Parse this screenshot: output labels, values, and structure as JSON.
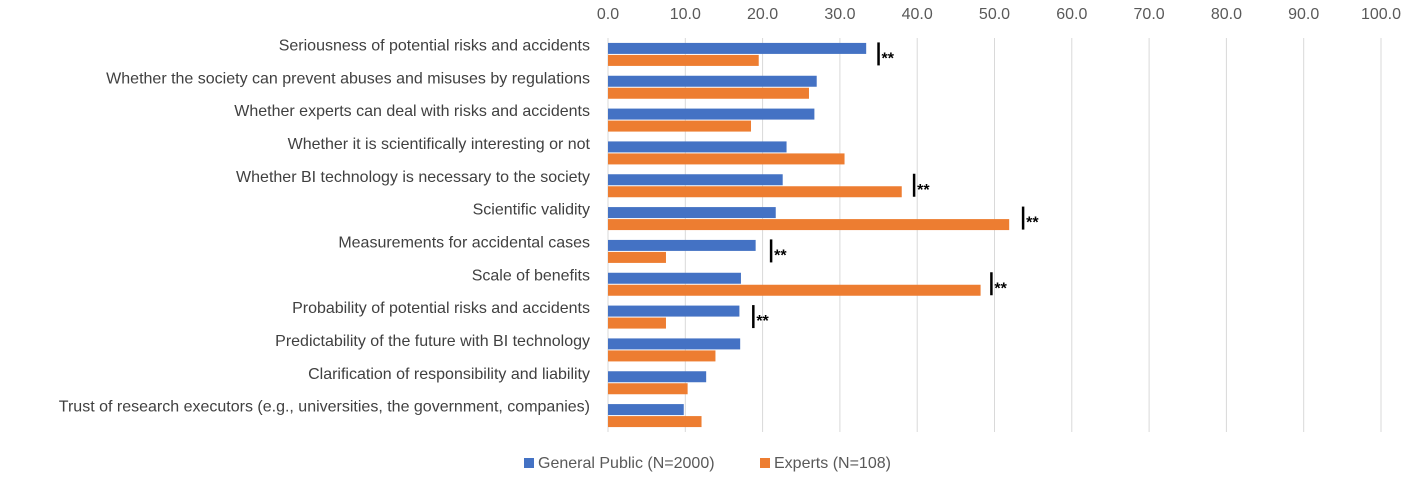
{
  "chart_data": {
    "type": "bar",
    "orientation": "horizontal",
    "title": "",
    "xlabel": "",
    "ylabel": "",
    "xlim": [
      0,
      100
    ],
    "x_ticks": [
      "0.0",
      "10.0",
      "20.0",
      "30.0",
      "40.0",
      "50.0",
      "60.0",
      "70.0",
      "80.0",
      "90.0",
      "100.0"
    ],
    "x_axis_position": "top",
    "grid": true,
    "legend_position": "bottom",
    "categories": [
      "Seriousness of potential risks and accidents",
      "Whether the society can prevent abuses and misuses by regulations",
      "Whether experts can deal with risks and accidents",
      "Whether it is scientifically interesting or not",
      "Whether BI technology is necessary to the society",
      "Scientific validity",
      "Measurements for accidental cases",
      "Scale of benefits",
      "Probability of potential risks and accidents",
      "Predictability of the future with BI technology",
      "Clarification of responsibility and liability",
      "Trust of research executors (e.g., universities, the government, companies)"
    ],
    "series": [
      {
        "name": "General Public (N=2000)",
        "color": "#4472C4",
        "values": [
          33.4,
          27.0,
          26.7,
          23.1,
          22.6,
          21.7,
          19.1,
          17.2,
          17.0,
          17.1,
          12.7,
          9.8
        ]
      },
      {
        "name": "Experts (N=108)",
        "color": "#ED7D31",
        "values": [
          19.5,
          26.0,
          18.5,
          30.6,
          38.0,
          51.9,
          7.5,
          48.2,
          7.5,
          13.9,
          10.3,
          12.1
        ]
      }
    ],
    "significance": [
      {
        "category_index": 0,
        "label": "**",
        "at": 35.0
      },
      {
        "category_index": 4,
        "label": "**",
        "at": 39.6
      },
      {
        "category_index": 5,
        "label": "**",
        "at": 53.7
      },
      {
        "category_index": 6,
        "label": "**",
        "at": 21.1
      },
      {
        "category_index": 7,
        "label": "**",
        "at": 49.6
      },
      {
        "category_index": 8,
        "label": "**",
        "at": 18.8
      }
    ]
  }
}
